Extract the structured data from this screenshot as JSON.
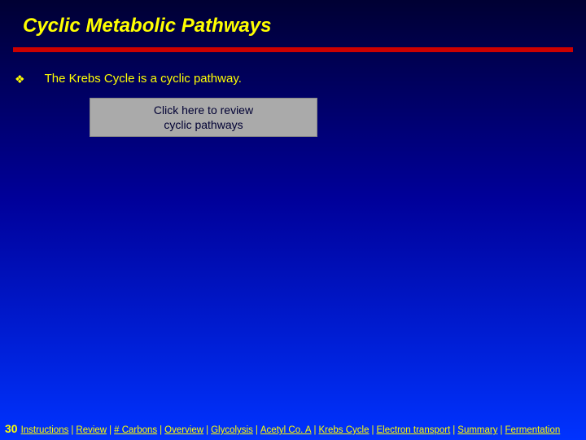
{
  "title": "Cyclic Metabolic Pathways",
  "bullet": {
    "icon": "❖",
    "text": "The Krebs Cycle is a cyclic pathway."
  },
  "button": {
    "line1": "Click here to review",
    "line2": "cyclic pathways"
  },
  "footer": {
    "slide_number": "30",
    "links": {
      "instructions": "Instructions",
      "review": "Review",
      "carbons": "# Carbons",
      "overview": "Overview",
      "glycolysis": "Glycolysis",
      "acetyl": "Acetyl Co. A",
      "krebs": "Krebs Cycle",
      "electron": "Electron transport",
      "summary": "Summary",
      "fermentation": "Fermentation"
    },
    "separator": "|"
  },
  "colors": {
    "title_color": "#ffff00",
    "divider_color": "#cc0000",
    "button_bg": "#aaaaaa",
    "button_text": "#000033",
    "bg_top": "#000033",
    "bg_mid": "#000099",
    "bg_bottom": "#0033ff"
  }
}
